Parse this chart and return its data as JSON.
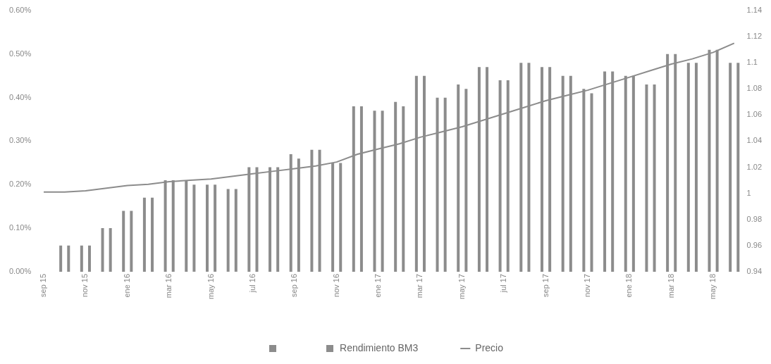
{
  "chart_data": {
    "type": "bar",
    "categories": [
      "sep 15",
      null,
      "nov 15",
      null,
      "ene 16",
      null,
      "mar 16",
      null,
      "may 16",
      null,
      "jul 16",
      null,
      "sep 16",
      null,
      "nov 16",
      null,
      "ene 17",
      null,
      "mar 17",
      null,
      "may 17",
      null,
      "jul 17",
      null,
      "sep 17",
      null,
      "nov 17",
      null,
      "ene 18",
      null,
      "mar 18",
      null,
      "may 18",
      null
    ],
    "series": [
      {
        "color": "#8c8c8c",
        "values": [
          0,
          0.06,
          0.06,
          0.1,
          0.14,
          0.17,
          0.21,
          0.21,
          0.2,
          0.19,
          0.24,
          0.24,
          0.27,
          0.28,
          0.25,
          0.38,
          0.37,
          0.39,
          0.45,
          0.4,
          0.43,
          0.47,
          0.44,
          0.48,
          0.47,
          0.45,
          0.42,
          0.46,
          0.45,
          0.43,
          0.5,
          0.48,
          0.51,
          0.48
        ]
      },
      {
        "name": "Rendimiento BM3",
        "color": "#8c8c8c",
        "values": [
          0,
          0.06,
          0.06,
          0.1,
          0.14,
          0.17,
          0.21,
          0.2,
          0.2,
          0.19,
          0.24,
          0.24,
          0.26,
          0.28,
          0.25,
          0.38,
          0.37,
          0.38,
          0.45,
          0.4,
          0.42,
          0.47,
          0.44,
          0.48,
          0.47,
          0.45,
          0.41,
          0.46,
          0.45,
          0.43,
          0.5,
          0.48,
          0.51,
          0.48
        ]
      },
      {
        "type": "line",
        "name": "Precio",
        "axis": "y2",
        "color": "#8c8c8c",
        "values": [
          1.001,
          1.001,
          1.002,
          1.004,
          1.006,
          1.007,
          1.009,
          1.01,
          1.011,
          1.013,
          1.015,
          1.017,
          1.019,
          1.021,
          1.024,
          1.03,
          1.034,
          1.038,
          1.043,
          1.047,
          1.051,
          1.056,
          1.061,
          1.066,
          1.071,
          1.075,
          1.079,
          1.084,
          1.089,
          1.094,
          1.099,
          1.103,
          1.108,
          1.115
        ]
      }
    ],
    "ylim": [
      0,
      0.6
    ],
    "yticks": [
      {
        "value": 0,
        "label": "0.00%"
      },
      {
        "value": 0.1,
        "label": "0.10%"
      },
      {
        "value": 0.2,
        "label": "0.20%"
      },
      {
        "value": 0.3,
        "label": "0.30%"
      },
      {
        "value": 0.4,
        "label": "0.40%"
      },
      {
        "value": 0.5,
        "label": "0.50%"
      },
      {
        "value": 0.6,
        "label": "0.60%"
      }
    ],
    "y2lim": [
      0.94,
      1.14
    ],
    "y2ticks": [
      0.94,
      0.96,
      0.98,
      1,
      1.02,
      1.04,
      1.06,
      1.08,
      1.1,
      1.12,
      1.14
    ],
    "grid": false,
    "legend": "bottom",
    "marker": "none",
    "line_style": "solid"
  }
}
